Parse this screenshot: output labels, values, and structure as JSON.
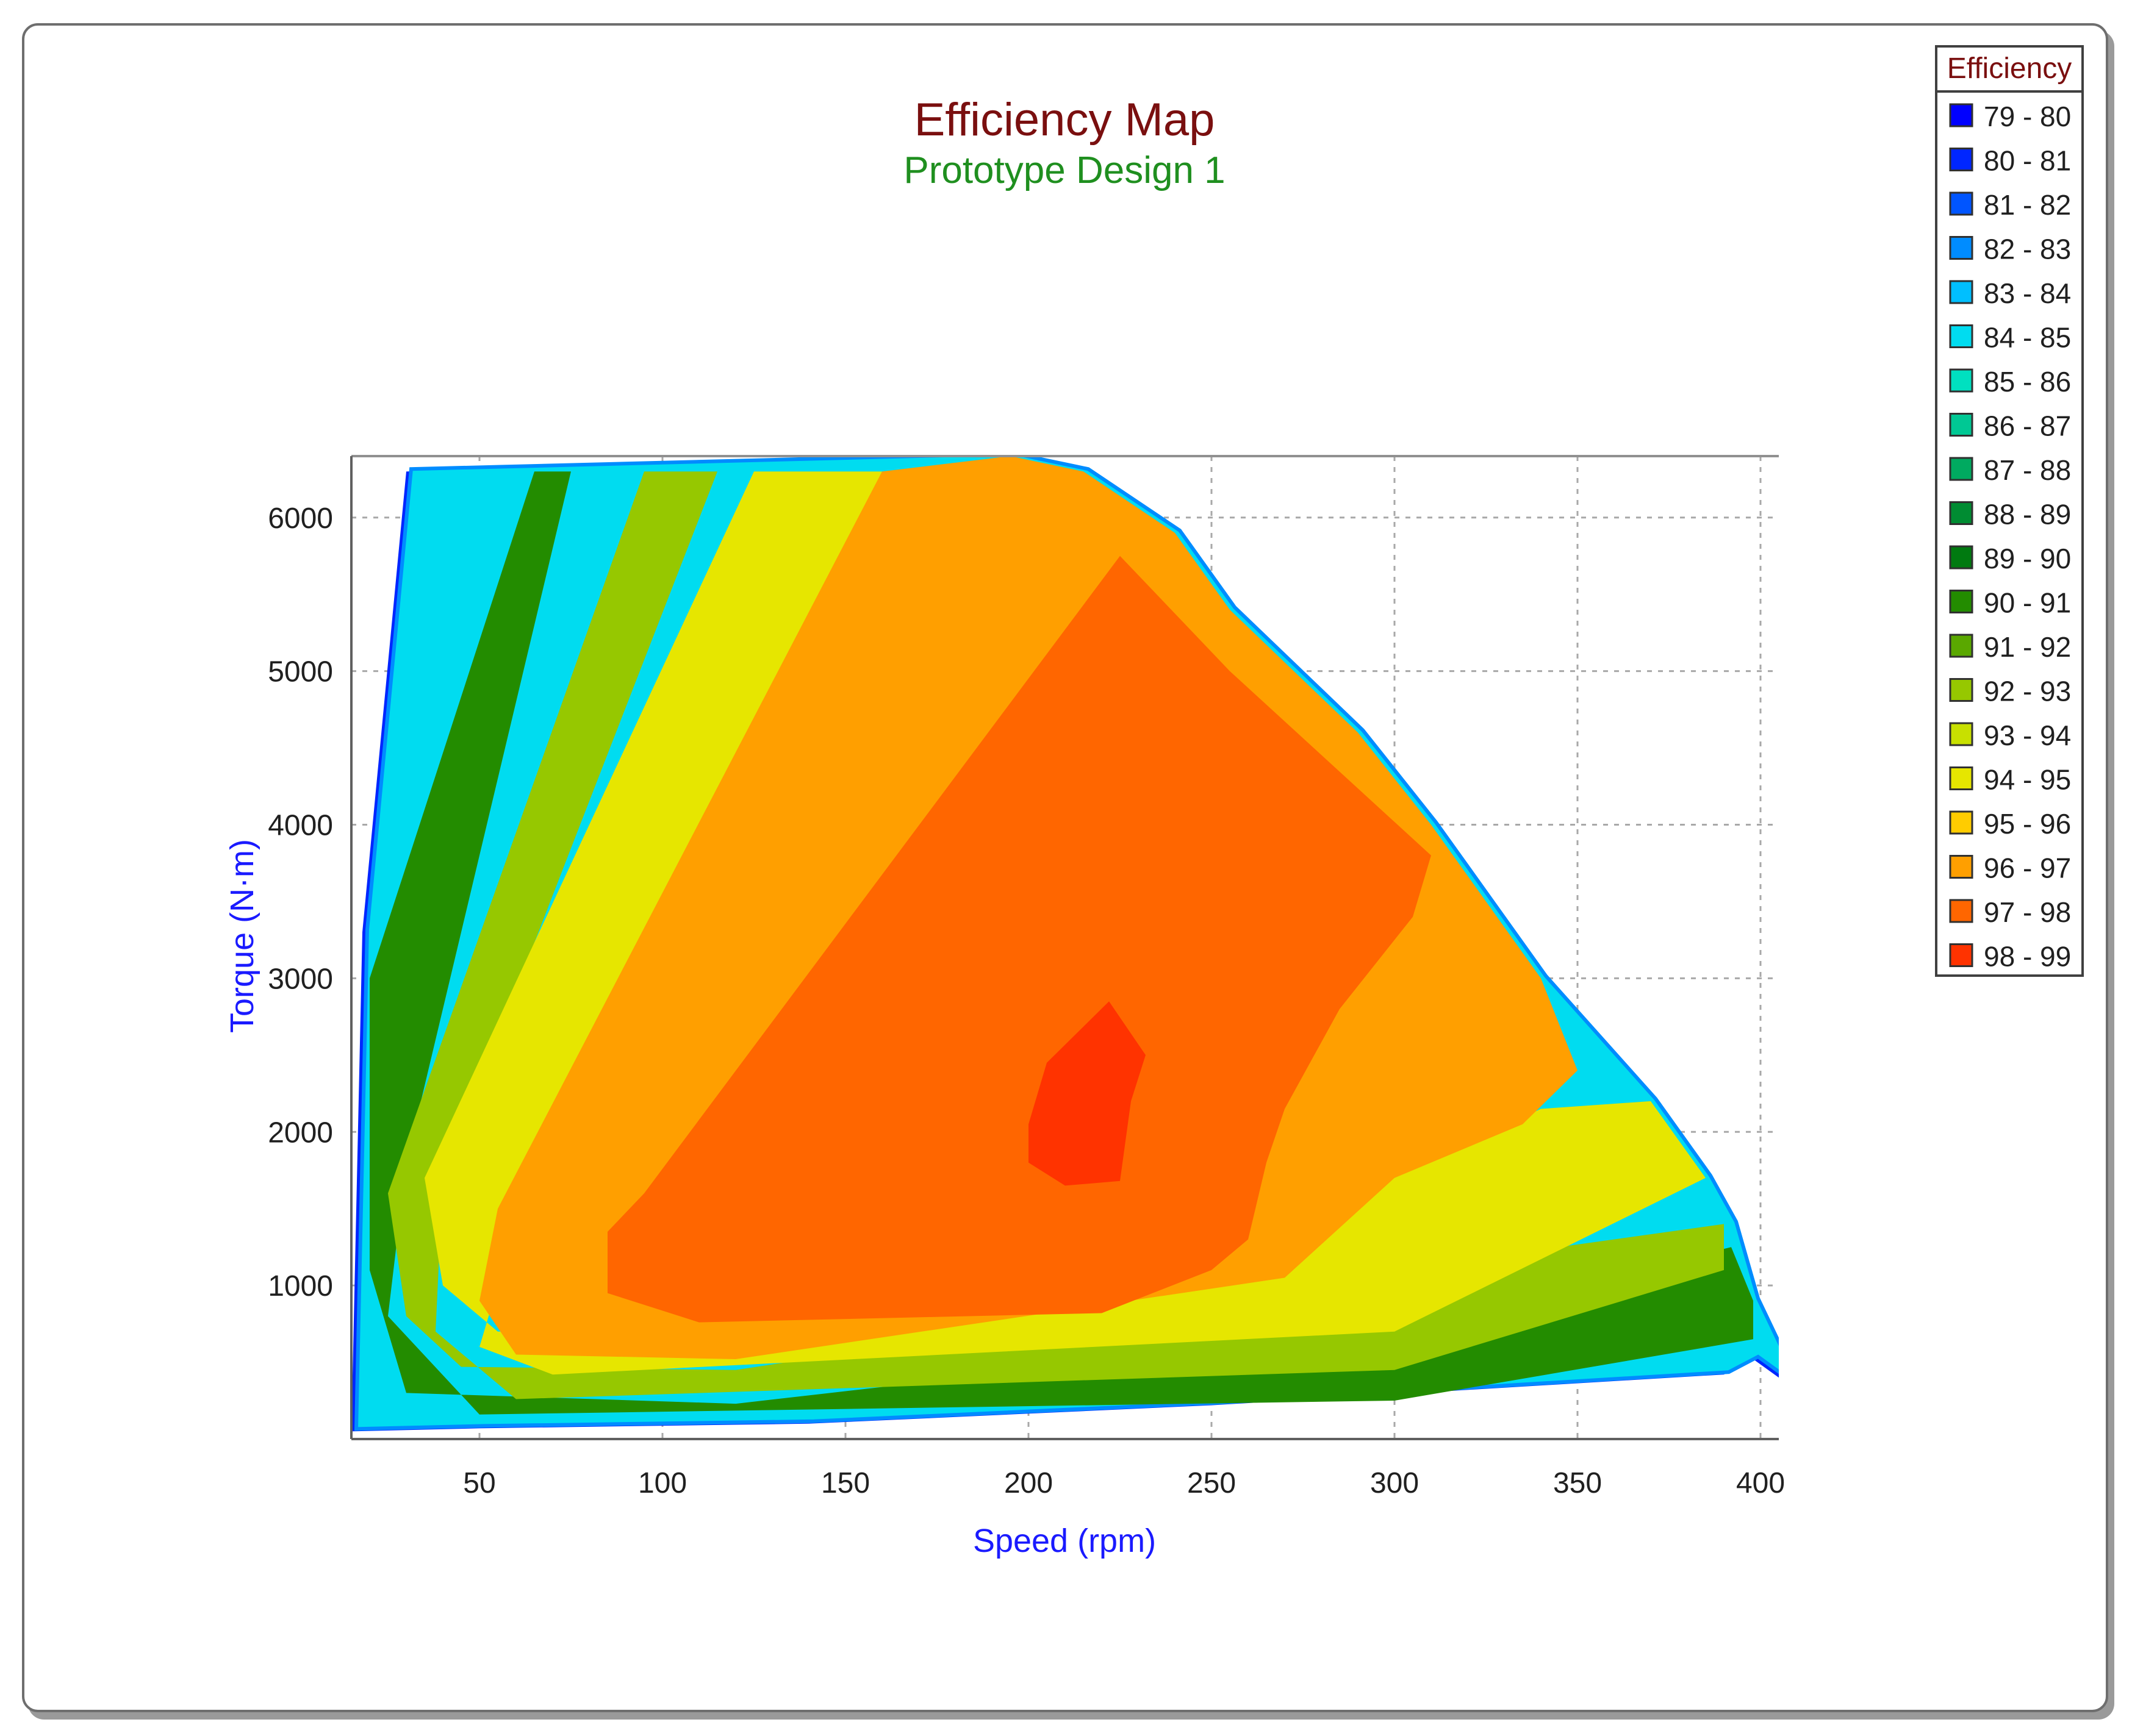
{
  "chart_data": {
    "type": "heatmap",
    "title": "Efficiency Map",
    "subtitle": "Prototype Design 1",
    "xlabel": "Speed (rpm)",
    "ylabel": "Torque (N·m)",
    "xlim": [
      15,
      405
    ],
    "ylim": [
      0,
      6400
    ],
    "x_ticks": [
      "50",
      "100",
      "150",
      "200",
      "250",
      "300",
      "350",
      "400"
    ],
    "y_ticks": [
      "1000",
      "2000",
      "3000",
      "4000",
      "5000",
      "6000"
    ],
    "grid": true,
    "legend_position": "top-right",
    "legend": {
      "title": "Efficiency",
      "entries": [
        {
          "label": "79 - 80",
          "color": "#0000ff"
        },
        {
          "label": "80 - 81",
          "color": "#0026ff"
        },
        {
          "label": "81 - 82",
          "color": "#0055ff"
        },
        {
          "label": "82 - 83",
          "color": "#008cff"
        },
        {
          "label": "83 - 84",
          "color": "#00bfff"
        },
        {
          "label": "84 - 85",
          "color": "#00dcf0"
        },
        {
          "label": "85 - 86",
          "color": "#00e0c0"
        },
        {
          "label": "86 - 87",
          "color": "#00c894"
        },
        {
          "label": "87 - 88",
          "color": "#00aa60"
        },
        {
          "label": "88 - 89",
          "color": "#008c32"
        },
        {
          "label": "89 - 90",
          "color": "#007a10"
        },
        {
          "label": "90 - 91",
          "color": "#238c00"
        },
        {
          "label": "91 - 92",
          "color": "#5aa800"
        },
        {
          "label": "92 - 93",
          "color": "#96c800"
        },
        {
          "label": "93 - 94",
          "color": "#c8e000"
        },
        {
          "label": "94 - 95",
          "color": "#e6e600"
        },
        {
          "label": "95 - 96",
          "color": "#ffcc00"
        },
        {
          "label": "96 - 97",
          "color": "#ff9f00"
        },
        {
          "label": "97 - 98",
          "color": "#ff6600"
        },
        {
          "label": "98 - 99",
          "color": "#ff3300"
        }
      ]
    },
    "max_torque_envelope": [
      [
        18,
        3300
      ],
      [
        30,
        6300
      ],
      [
        195,
        6400
      ],
      [
        215,
        6300
      ],
      [
        240,
        5900
      ],
      [
        255,
        5400
      ],
      [
        290,
        4600
      ],
      [
        310,
        4000
      ],
      [
        340,
        3000
      ],
      [
        370,
        2200
      ],
      [
        385,
        1700
      ],
      [
        392,
        1400
      ],
      [
        398,
        900
      ],
      [
        405,
        550
      ],
      [
        405,
        400
      ],
      [
        398,
        520
      ],
      [
        390,
        420
      ],
      [
        250,
        220
      ],
      [
        140,
        100
      ],
      [
        50,
        70
      ],
      [
        15,
        50
      ]
    ],
    "efficiency_regions": [
      {
        "band": "90 - 91",
        "outline": [
          [
            20,
            3000
          ],
          [
            65,
            6300
          ],
          [
            75,
            6300
          ],
          [
            30,
            1800
          ],
          [
            25,
            800
          ],
          [
            50,
            160
          ],
          [
            300,
            250
          ],
          [
            398,
            650
          ],
          [
            398,
            900
          ],
          [
            392,
            1250
          ],
          [
            300,
            720
          ],
          [
            120,
            230
          ],
          [
            30,
            300
          ],
          [
            20,
            1100
          ]
        ]
      },
      {
        "band": "92 - 93",
        "outline": [
          [
            25,
            1600
          ],
          [
            95,
            6300
          ],
          [
            115,
            6300
          ],
          [
            40,
            1700
          ],
          [
            38,
            700
          ],
          [
            60,
            260
          ],
          [
            300,
            450
          ],
          [
            390,
            1100
          ],
          [
            390,
            1400
          ],
          [
            300,
            1100
          ],
          [
            120,
            450
          ],
          [
            45,
            470
          ],
          [
            30,
            800
          ]
        ]
      },
      {
        "band": "94 - 95",
        "outline": [
          [
            35,
            1700
          ],
          [
            125,
            6300
          ],
          [
            160,
            6300
          ],
          [
            60,
            1400
          ],
          [
            50,
            600
          ],
          [
            70,
            420
          ],
          [
            300,
            700
          ],
          [
            385,
            1700
          ],
          [
            370,
            2200
          ],
          [
            340,
            2150
          ],
          [
            300,
            1700
          ],
          [
            140,
            700
          ],
          [
            55,
            700
          ],
          [
            40,
            1000
          ]
        ]
      },
      {
        "band": "96 - 97",
        "outline": [
          [
            50,
            900
          ],
          [
            55,
            1500
          ],
          [
            160,
            6300
          ],
          [
            195,
            6400
          ],
          [
            215,
            6300
          ],
          [
            240,
            5900
          ],
          [
            255,
            5400
          ],
          [
            290,
            4600
          ],
          [
            310,
            4000
          ],
          [
            340,
            3000
          ],
          [
            350,
            2400
          ],
          [
            335,
            2050
          ],
          [
            300,
            1700
          ],
          [
            270,
            1050
          ],
          [
            120,
            520
          ],
          [
            60,
            550
          ]
        ]
      },
      {
        "band": "97 - 98",
        "outline": [
          [
            85,
            950
          ],
          [
            85,
            1350
          ],
          [
            95,
            1600
          ],
          [
            225,
            5750
          ],
          [
            255,
            5000
          ],
          [
            310,
            3800
          ],
          [
            305,
            3400
          ],
          [
            285,
            2800
          ],
          [
            270,
            2150
          ],
          [
            265,
            1800
          ],
          [
            260,
            1300
          ],
          [
            250,
            1100
          ],
          [
            220,
            820
          ],
          [
            110,
            760
          ]
        ]
      },
      {
        "band": "98 - 99",
        "outline": [
          [
            200,
            2050
          ],
          [
            205,
            2450
          ],
          [
            222,
            2850
          ],
          [
            232,
            2500
          ],
          [
            228,
            2200
          ],
          [
            225,
            1680
          ],
          [
            210,
            1650
          ],
          [
            200,
            1800
          ]
        ]
      }
    ]
  }
}
